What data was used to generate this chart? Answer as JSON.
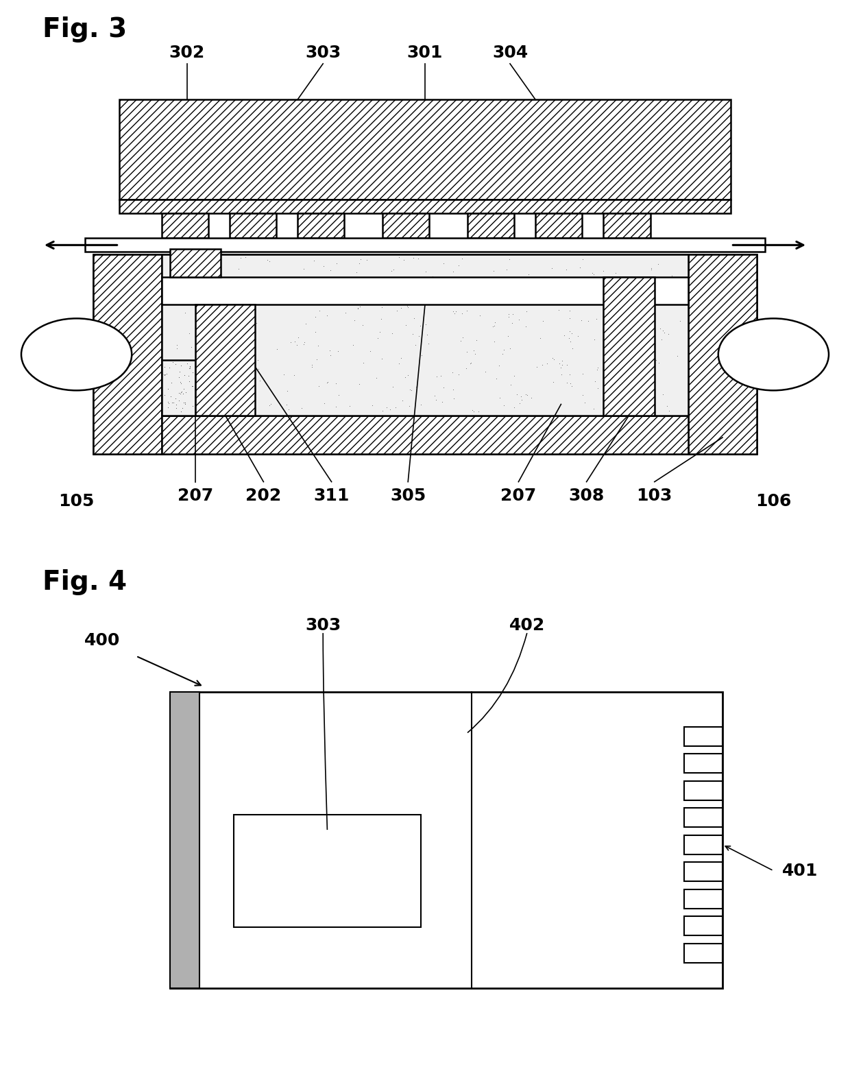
{
  "fig3_title": "Fig. 3",
  "fig4_title": "Fig. 4",
  "bg_color": "#ffffff",
  "line_color": "#000000",
  "label_fontsize": 18,
  "title_fontsize": 28
}
